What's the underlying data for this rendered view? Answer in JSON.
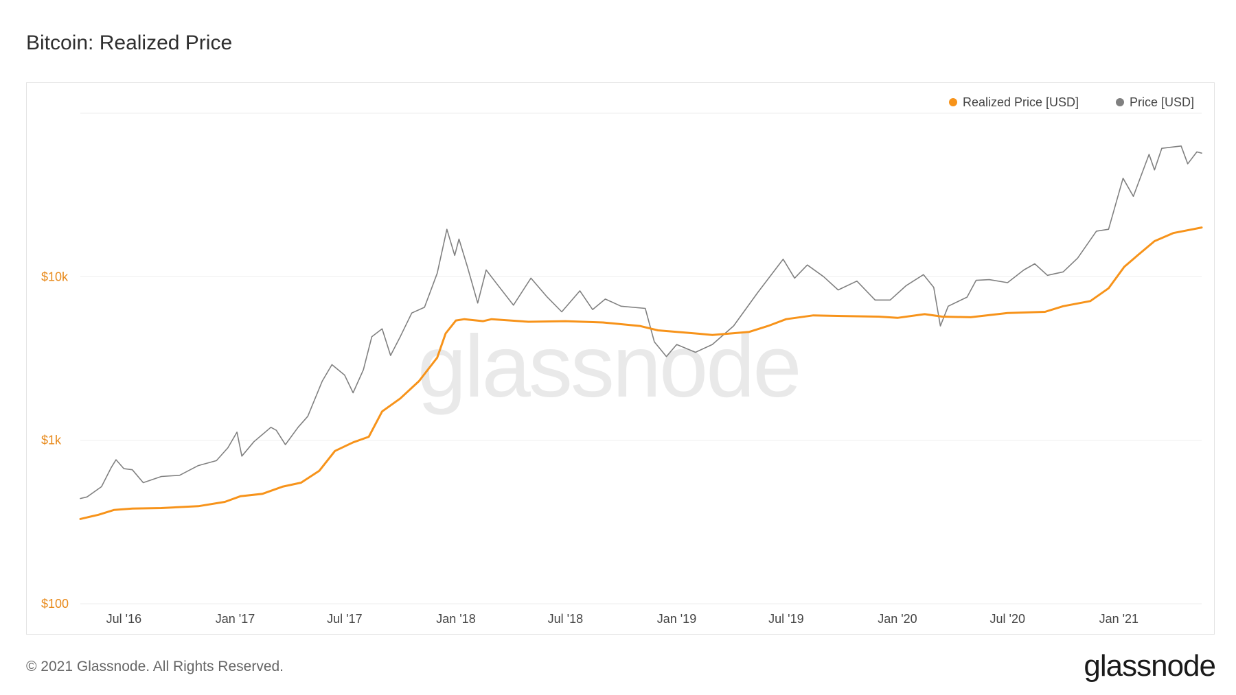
{
  "title": "Bitcoin: Realized Price",
  "footer": {
    "copyright": "© 2021 Glassnode. All Rights Reserved.",
    "logo": "glassnode"
  },
  "watermark": "glassnode",
  "colors": {
    "realized": "#f7931a",
    "price": "#808080",
    "grid": "#eeeeee",
    "axis_label": "#e8891a"
  },
  "chart_data": {
    "type": "line",
    "title": "Bitcoin: Realized Price",
    "yscale": "log",
    "ylim": [
      100,
      100000
    ],
    "yticks": [
      {
        "value": 100,
        "label": "$100"
      },
      {
        "value": 1000,
        "label": "$1k"
      },
      {
        "value": 10000,
        "label": "$10k"
      }
    ],
    "xlim": [
      "2016-04-20",
      "2021-05-18"
    ],
    "xticks": [
      {
        "date": "2016-07-01",
        "label": "Jul '16"
      },
      {
        "date": "2017-01-01",
        "label": "Jan '17"
      },
      {
        "date": "2017-07-01",
        "label": "Jul '17"
      },
      {
        "date": "2018-01-01",
        "label": "Jan '18"
      },
      {
        "date": "2018-07-01",
        "label": "Jul '18"
      },
      {
        "date": "2019-01-01",
        "label": "Jan '19"
      },
      {
        "date": "2019-07-01",
        "label": "Jul '19"
      },
      {
        "date": "2020-01-01",
        "label": "Jan '20"
      },
      {
        "date": "2020-07-01",
        "label": "Jul '20"
      },
      {
        "date": "2021-01-01",
        "label": "Jan '21"
      }
    ],
    "legend_position": "top-right",
    "grid": true,
    "series": [
      {
        "name": "Realized Price [USD]",
        "color": "#f7931a",
        "points": [
          [
            "2016-04-20",
            330
          ],
          [
            "2016-05-20",
            350
          ],
          [
            "2016-06-15",
            375
          ],
          [
            "2016-07-15",
            382
          ],
          [
            "2016-09-01",
            385
          ],
          [
            "2016-11-01",
            395
          ],
          [
            "2016-12-15",
            420
          ],
          [
            "2017-01-10",
            455
          ],
          [
            "2017-02-15",
            470
          ],
          [
            "2017-03-20",
            520
          ],
          [
            "2017-04-20",
            550
          ],
          [
            "2017-05-20",
            650
          ],
          [
            "2017-06-15",
            860
          ],
          [
            "2017-07-15",
            970
          ],
          [
            "2017-08-10",
            1050
          ],
          [
            "2017-09-01",
            1500
          ],
          [
            "2017-10-01",
            1800
          ],
          [
            "2017-11-01",
            2300
          ],
          [
            "2017-12-01",
            3200
          ],
          [
            "2017-12-15",
            4500
          ],
          [
            "2018-01-01",
            5400
          ],
          [
            "2018-01-15",
            5500
          ],
          [
            "2018-02-15",
            5350
          ],
          [
            "2018-03-01",
            5500
          ],
          [
            "2018-05-01",
            5300
          ],
          [
            "2018-07-01",
            5350
          ],
          [
            "2018-09-01",
            5250
          ],
          [
            "2018-11-01",
            5000
          ],
          [
            "2018-12-01",
            4700
          ],
          [
            "2019-02-01",
            4500
          ],
          [
            "2019-03-01",
            4400
          ],
          [
            "2019-05-01",
            4600
          ],
          [
            "2019-06-01",
            5000
          ],
          [
            "2019-07-01",
            5500
          ],
          [
            "2019-08-15",
            5800
          ],
          [
            "2019-10-01",
            5750
          ],
          [
            "2019-12-01",
            5700
          ],
          [
            "2020-01-01",
            5600
          ],
          [
            "2020-02-15",
            5900
          ],
          [
            "2020-03-15",
            5700
          ],
          [
            "2020-05-01",
            5650
          ],
          [
            "2020-07-01",
            6000
          ],
          [
            "2020-09-01",
            6100
          ],
          [
            "2020-10-01",
            6600
          ],
          [
            "2020-11-15",
            7100
          ],
          [
            "2020-12-15",
            8500
          ],
          [
            "2021-01-10",
            11500
          ],
          [
            "2021-02-01",
            13500
          ],
          [
            "2021-03-01",
            16500
          ],
          [
            "2021-04-01",
            18500
          ],
          [
            "2021-05-18",
            20000
          ]
        ]
      },
      {
        "name": "Price [USD]",
        "color": "#808080",
        "points": [
          [
            "2016-04-20",
            440
          ],
          [
            "2016-05-01",
            450
          ],
          [
            "2016-05-25",
            520
          ],
          [
            "2016-06-10",
            680
          ],
          [
            "2016-06-18",
            760
          ],
          [
            "2016-07-01",
            670
          ],
          [
            "2016-07-15",
            660
          ],
          [
            "2016-08-02",
            550
          ],
          [
            "2016-09-01",
            600
          ],
          [
            "2016-10-01",
            610
          ],
          [
            "2016-11-01",
            700
          ],
          [
            "2016-12-01",
            750
          ],
          [
            "2016-12-20",
            900
          ],
          [
            "2017-01-04",
            1120
          ],
          [
            "2017-01-12",
            800
          ],
          [
            "2017-02-01",
            980
          ],
          [
            "2017-03-01",
            1200
          ],
          [
            "2017-03-10",
            1150
          ],
          [
            "2017-03-25",
            940
          ],
          [
            "2017-04-15",
            1200
          ],
          [
            "2017-05-01",
            1400
          ],
          [
            "2017-05-25",
            2300
          ],
          [
            "2017-06-10",
            2900
          ],
          [
            "2017-07-01",
            2500
          ],
          [
            "2017-07-15",
            1950
          ],
          [
            "2017-08-01",
            2700
          ],
          [
            "2017-08-15",
            4300
          ],
          [
            "2017-09-01",
            4800
          ],
          [
            "2017-09-15",
            3300
          ],
          [
            "2017-10-01",
            4300
          ],
          [
            "2017-10-20",
            6000
          ],
          [
            "2017-11-10",
            6500
          ],
          [
            "2017-12-01",
            10500
          ],
          [
            "2017-12-17",
            19500
          ],
          [
            "2017-12-30",
            13500
          ],
          [
            "2018-01-06",
            17000
          ],
          [
            "2018-01-20",
            11500
          ],
          [
            "2018-02-06",
            6900
          ],
          [
            "2018-02-20",
            11000
          ],
          [
            "2018-03-10",
            9000
          ],
          [
            "2018-04-06",
            6700
          ],
          [
            "2018-05-05",
            9800
          ],
          [
            "2018-06-01",
            7500
          ],
          [
            "2018-06-25",
            6100
          ],
          [
            "2018-07-25",
            8200
          ],
          [
            "2018-08-15",
            6300
          ],
          [
            "2018-09-05",
            7300
          ],
          [
            "2018-10-01",
            6600
          ],
          [
            "2018-11-10",
            6400
          ],
          [
            "2018-11-25",
            4000
          ],
          [
            "2018-12-15",
            3250
          ],
          [
            "2019-01-01",
            3850
          ],
          [
            "2019-02-01",
            3450
          ],
          [
            "2019-03-01",
            3850
          ],
          [
            "2019-04-05",
            5000
          ],
          [
            "2019-05-15",
            8000
          ],
          [
            "2019-06-26",
            12800
          ],
          [
            "2019-07-15",
            9800
          ],
          [
            "2019-08-05",
            11800
          ],
          [
            "2019-09-01",
            10000
          ],
          [
            "2019-09-25",
            8300
          ],
          [
            "2019-10-26",
            9400
          ],
          [
            "2019-11-25",
            7200
          ],
          [
            "2019-12-20",
            7200
          ],
          [
            "2020-01-15",
            8800
          ],
          [
            "2020-02-13",
            10300
          ],
          [
            "2020-03-01",
            8600
          ],
          [
            "2020-03-12",
            5000
          ],
          [
            "2020-03-25",
            6600
          ],
          [
            "2020-04-25",
            7500
          ],
          [
            "2020-05-10",
            9500
          ],
          [
            "2020-06-01",
            9600
          ],
          [
            "2020-07-01",
            9200
          ],
          [
            "2020-07-28",
            11000
          ],
          [
            "2020-08-15",
            12000
          ],
          [
            "2020-09-05",
            10200
          ],
          [
            "2020-10-01",
            10700
          ],
          [
            "2020-10-25",
            13000
          ],
          [
            "2020-11-25",
            19000
          ],
          [
            "2020-12-15",
            19500
          ],
          [
            "2021-01-08",
            40000
          ],
          [
            "2021-01-25",
            31000
          ],
          [
            "2021-02-20",
            56000
          ],
          [
            "2021-03-01",
            45000
          ],
          [
            "2021-03-13",
            61000
          ],
          [
            "2021-04-14",
            63000
          ],
          [
            "2021-04-25",
            49000
          ],
          [
            "2021-05-10",
            58000
          ],
          [
            "2021-05-18",
            57000
          ]
        ]
      }
    ]
  }
}
